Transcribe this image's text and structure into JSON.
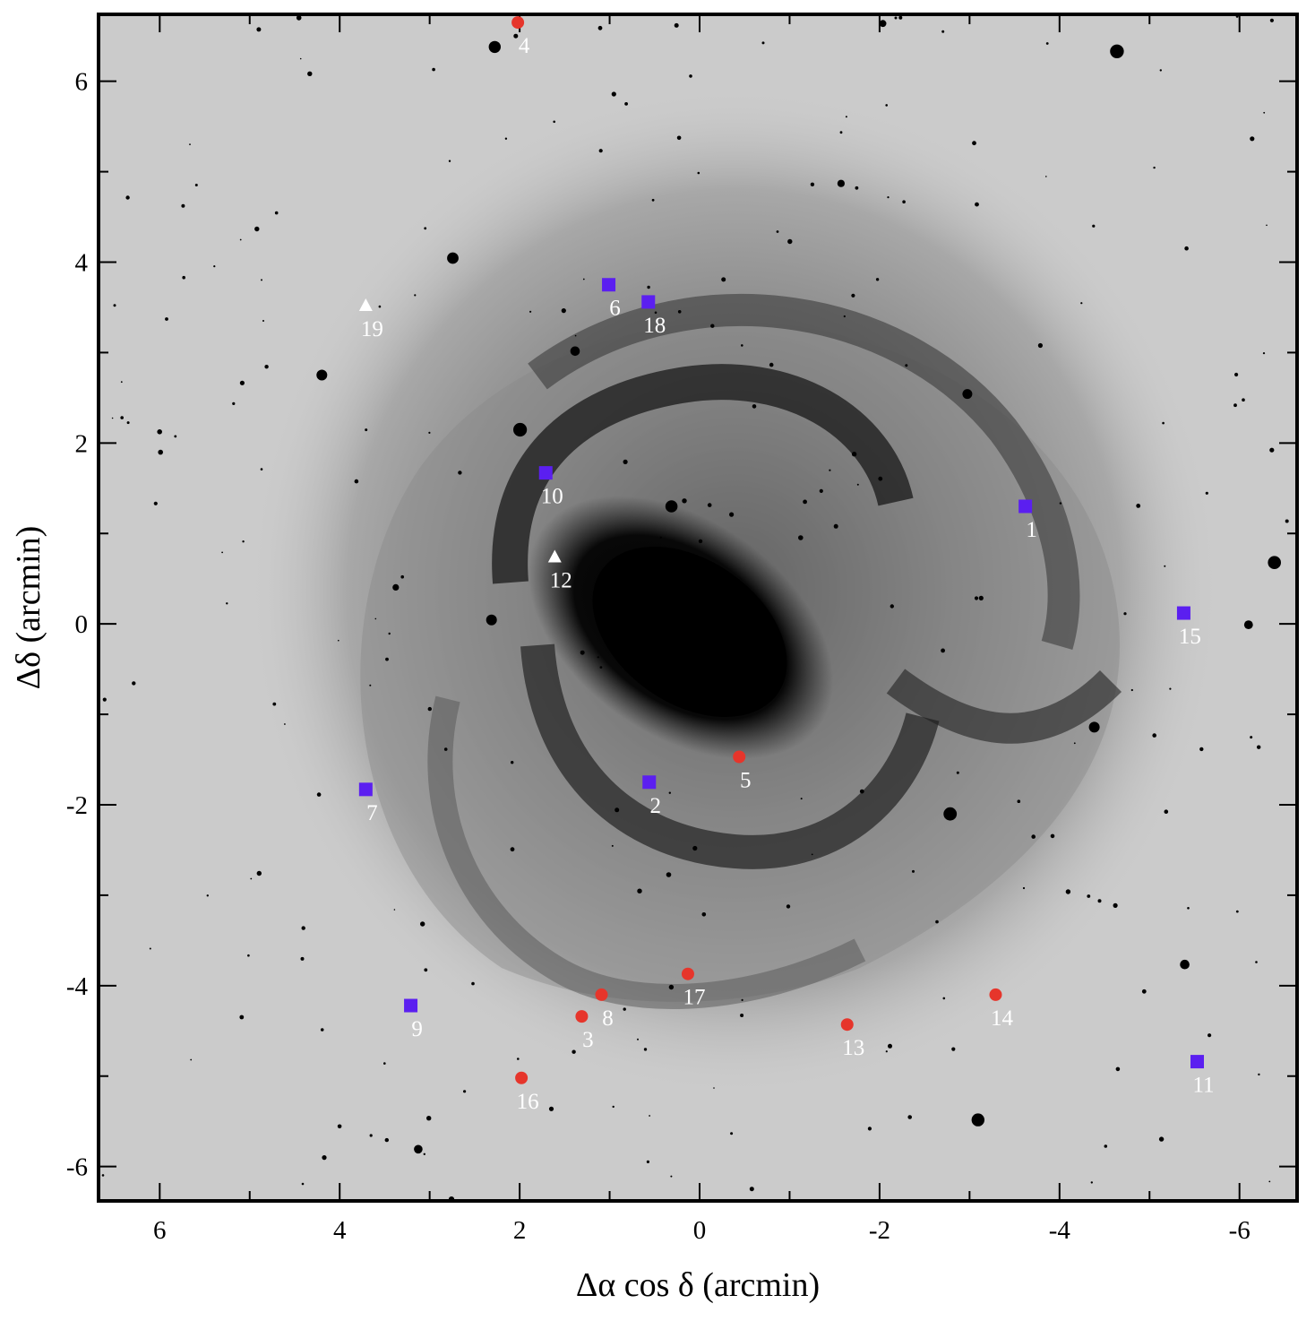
{
  "chart_data": {
    "type": "scatter",
    "title": "",
    "xlabel": "Δα cos δ  (arcmin)",
    "ylabel": "Δδ  (arcmin)",
    "xlim": [
      6.68,
      -6.64
    ],
    "ylim": [
      -6.38,
      6.74
    ],
    "x_ticks": [
      6,
      4,
      2,
      0,
      -2,
      -4,
      -6
    ],
    "y_ticks": [
      6,
      4,
      2,
      0,
      -2,
      -4,
      -6
    ],
    "x_tick_labels": [
      "6",
      "4",
      "2",
      "0",
      "-2",
      "-4",
      "-6"
    ],
    "y_tick_labels": [
      "6",
      "4",
      "2",
      "0",
      "-2",
      "-4",
      "-6"
    ],
    "background": "inverted grayscale image of a barred spiral galaxy",
    "grid": false,
    "legend": "none",
    "marker_colors": {
      "square": "#5b1ff0",
      "circle": "#e6352b",
      "triangle": "#ffffff"
    },
    "series": [
      {
        "marker": "square",
        "points": [
          {
            "label": "1",
            "x": -3.62,
            "y": 1.3
          },
          {
            "label": "2",
            "x": 0.56,
            "y": -1.75
          },
          {
            "label": "6",
            "x": 1.01,
            "y": 3.75
          },
          {
            "label": "7",
            "x": 3.71,
            "y": -1.83
          },
          {
            "label": "9",
            "x": 3.21,
            "y": -4.22
          },
          {
            "label": "10",
            "x": 1.71,
            "y": 1.67
          },
          {
            "label": "11",
            "x": -5.53,
            "y": -4.84
          },
          {
            "label": "15",
            "x": -5.38,
            "y": 0.12
          },
          {
            "label": "18",
            "x": 0.57,
            "y": 3.56
          }
        ]
      },
      {
        "marker": "circle",
        "points": [
          {
            "label": "3",
            "x": 1.31,
            "y": -4.34
          },
          {
            "label": "4",
            "x": 2.02,
            "y": 6.65
          },
          {
            "label": "5",
            "x": -0.44,
            "y": -1.47
          },
          {
            "label": "8",
            "x": 1.09,
            "y": -4.1
          },
          {
            "label": "13",
            "x": -1.64,
            "y": -4.43
          },
          {
            "label": "14",
            "x": -3.29,
            "y": -4.1
          },
          {
            "label": "16",
            "x": 1.98,
            "y": -5.02
          },
          {
            "label": "17",
            "x": 0.13,
            "y": -3.87
          }
        ]
      },
      {
        "marker": "triangle",
        "points": [
          {
            "label": "12",
            "x": 1.61,
            "y": 0.74
          },
          {
            "label": "19",
            "x": 3.71,
            "y": 3.52
          }
        ]
      }
    ]
  }
}
